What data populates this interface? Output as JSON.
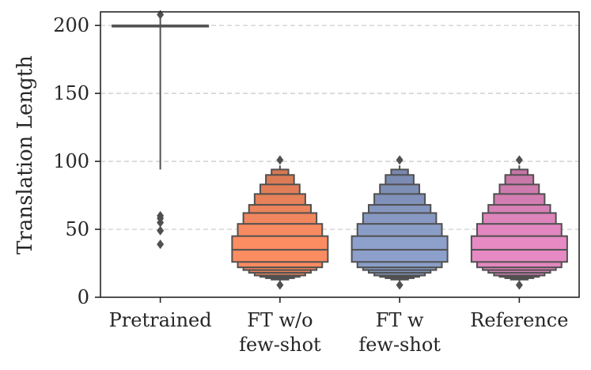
{
  "chart_data": {
    "type": "boxen",
    "title": "",
    "xlabel": "",
    "ylabel": "Translation Length",
    "ylim": [
      0,
      210
    ],
    "yticks": [
      0,
      50,
      100,
      150,
      200
    ],
    "grid": "y-dashed",
    "categories": [
      {
        "label_lines": [
          "Pretrained"
        ],
        "color": "#5a5a5a"
      },
      {
        "label_lines": [
          "FT w/o",
          "few-shot"
        ],
        "color": "#fc8d62"
      },
      {
        "label_lines": [
          "FT w",
          "few-shot"
        ],
        "color": "#8da0cb"
      },
      {
        "label_lines": [
          "Reference"
        ],
        "color": "#e78ac3"
      }
    ],
    "series": [
      {
        "name": "Pretrained",
        "median": 200,
        "levels": [
          [
            200,
            200
          ]
        ],
        "whisker": [
          94,
          208
        ],
        "outliers": [
          39,
          49,
          55,
          58,
          60,
          208
        ]
      },
      {
        "name": "FT w/o few-shot",
        "median": 35,
        "levels": [
          [
            26,
            45
          ],
          [
            22,
            54
          ],
          [
            20,
            62
          ],
          [
            18,
            68
          ],
          [
            16,
            76
          ],
          [
            15,
            83
          ],
          [
            14,
            90
          ],
          [
            13,
            94
          ]
        ],
        "whisker": [
          12,
          97
        ],
        "outliers": [
          9,
          101
        ]
      },
      {
        "name": "FT w few-shot",
        "median": 35,
        "levels": [
          [
            26,
            45
          ],
          [
            22,
            54
          ],
          [
            20,
            62
          ],
          [
            18,
            68
          ],
          [
            16,
            76
          ],
          [
            15,
            83
          ],
          [
            14,
            90
          ],
          [
            13,
            94
          ]
        ],
        "whisker": [
          12,
          97
        ],
        "outliers": [
          9,
          101
        ]
      },
      {
        "name": "Reference",
        "median": 35,
        "levels": [
          [
            26,
            45
          ],
          [
            22,
            54
          ],
          [
            20,
            62
          ],
          [
            18,
            68
          ],
          [
            16,
            76
          ],
          [
            15,
            83
          ],
          [
            14,
            90
          ],
          [
            13,
            94
          ]
        ],
        "whisker": [
          12,
          97
        ],
        "outliers": [
          9,
          101
        ]
      }
    ]
  }
}
